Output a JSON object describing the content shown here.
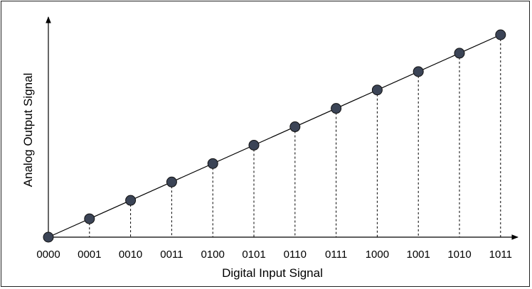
{
  "chart_data": {
    "type": "scatter",
    "title": "",
    "xlabel": "Digital Input Signal",
    "ylabel": "Analog Output Signal",
    "categories": [
      "0000",
      "0001",
      "0010",
      "0011",
      "0100",
      "0101",
      "0110",
      "0111",
      "1000",
      "1001",
      "1010",
      "1011"
    ],
    "values": [
      0,
      1,
      2,
      3,
      4,
      5,
      6,
      7,
      8,
      9,
      10,
      11
    ],
    "ylim": [
      0,
      11
    ],
    "grid": false,
    "trend_line": true,
    "drop_lines": true,
    "marker_color": "#3b4456",
    "line_color": "#000000"
  }
}
